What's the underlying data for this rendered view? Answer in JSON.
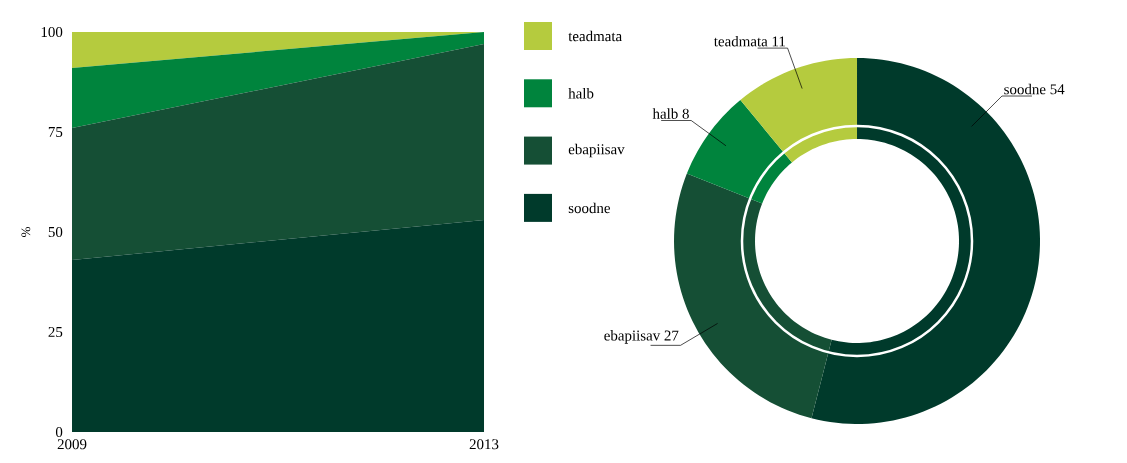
{
  "chart_data": [
    {
      "type": "area",
      "stacked": true,
      "ylabel": "%",
      "x": [
        2009,
        2013
      ],
      "xlim": [
        2009,
        2013
      ],
      "xticks": [
        2009,
        2013
      ],
      "ylim": [
        0,
        100
      ],
      "yticks": [
        0,
        25,
        50,
        75,
        100
      ],
      "legend": "right",
      "series": [
        {
          "name": "soodne",
          "color": "#003a2b",
          "values": [
            43,
            53
          ]
        },
        {
          "name": "ebapiisav",
          "color": "#154f35",
          "values": [
            33,
            44
          ]
        },
        {
          "name": "halb",
          "color": "#00843d",
          "values": [
            15,
            3
          ]
        },
        {
          "name": "teadmata",
          "color": "#b5cb3e",
          "values": [
            9,
            0
          ]
        }
      ]
    },
    {
      "type": "donut",
      "categories": [
        "soodne",
        "ebapiisav",
        "halb",
        "teadmata"
      ],
      "values": [
        54,
        27,
        8,
        11
      ],
      "colors": [
        "#003a2b",
        "#154f35",
        "#00843d",
        "#b5cb3e"
      ],
      "data_labels": true
    }
  ]
}
